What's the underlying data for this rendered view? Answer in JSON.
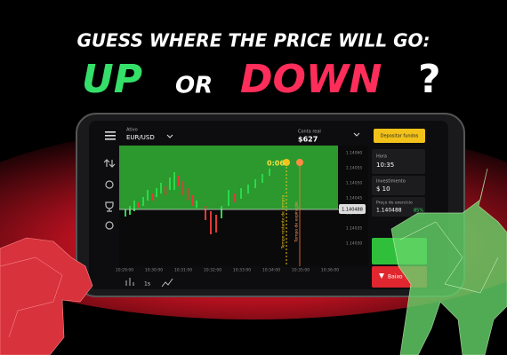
{
  "headline": {
    "line1": "GUESS WHERE THE PRICE WILL GO:",
    "up": "UP",
    "or": "OR",
    "down": "DOWN",
    "question": "?"
  },
  "app": {
    "asset_label": "Ativo",
    "asset": "EUR/USD",
    "account_label": "Conta real",
    "balance": "$627",
    "deposit": "Depositar fundos",
    "timer": "0:06",
    "current_price": "1.140488",
    "y_labels": [
      "1.14060",
      "1.14055",
      "1.14050",
      "1.14045",
      "1.14040",
      "1.14035",
      "1.14030"
    ],
    "x_labels": [
      "10:29:00",
      "10:30:00",
      "10:31:00",
      "10:32:00",
      "10:33:00",
      "10:34:00",
      "10:35:00",
      "10:36:00"
    ],
    "purchase_line": "Tempo restante de compra",
    "expiry_line": "Tempo de expiração",
    "time_label": "Hora",
    "time": "10:35",
    "investment_label": "Investimento",
    "investment": "$ 10",
    "strike_label": "Preço de exercício",
    "strike": "1.140488",
    "payout": "85%",
    "down_button": "Baixo",
    "interval": "1s"
  }
}
